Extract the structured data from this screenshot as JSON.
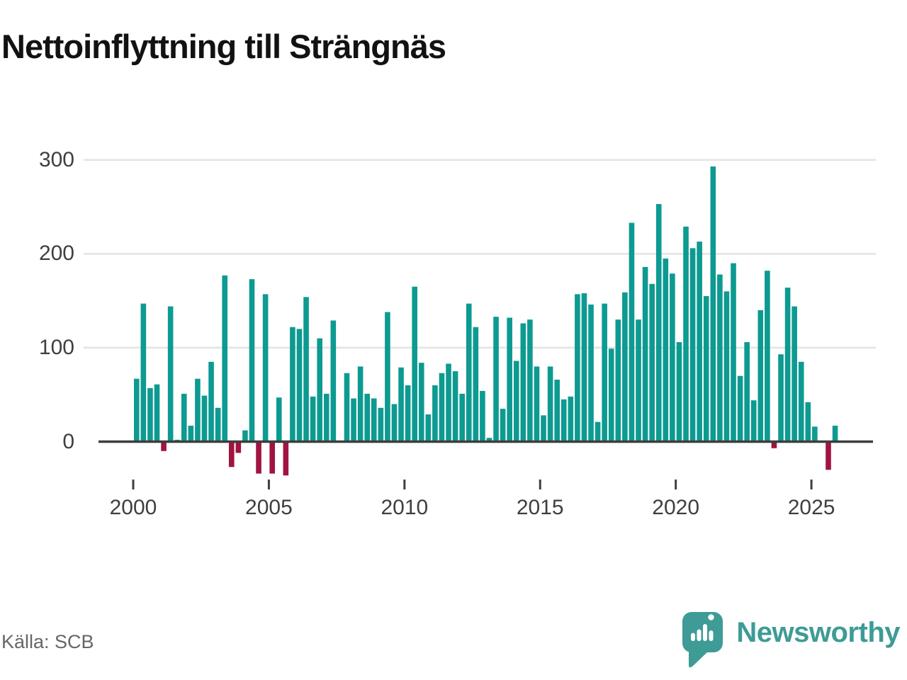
{
  "title": "Nettoinflyttning till Strängnäs",
  "source": "Källa: SCB",
  "branding": {
    "wordmark": "Newsworthy"
  },
  "colors": {
    "positive": "#0d9a91",
    "negative": "#a11340",
    "grid": "#e3e3e3",
    "axis": "#3d3d3d",
    "tick": "#3f3f3f",
    "label_text": "#3f3f3f",
    "title_text": "#121212",
    "source_text": "#666666",
    "brand": "#3e9b96"
  },
  "chart_data": {
    "type": "bar",
    "period": "quarterly",
    "start_year": 2000,
    "title": "Nettoinflyttning till Strängnäs",
    "xlabel": "",
    "ylabel": "",
    "ylim": [
      -45,
      310
    ],
    "grid": "horizontal",
    "y_ticks": [
      0,
      100,
      200,
      300
    ],
    "y_tick_labels": [
      "0",
      "100",
      "200",
      "300"
    ],
    "x_tick_years": [
      2000,
      2005,
      2010,
      2015,
      2020,
      2025
    ],
    "x_tick_labels": [
      "2000",
      "2005",
      "2010",
      "2015",
      "2020",
      "2025"
    ],
    "values": [
      67,
      147,
      57,
      61,
      -10,
      144,
      2,
      51,
      17,
      67,
      49,
      85,
      36,
      177,
      -27,
      -12,
      12,
      173,
      -34,
      157,
      -34,
      47,
      -36,
      122,
      120,
      154,
      48,
      110,
      51,
      129,
      0,
      73,
      46,
      80,
      51,
      46,
      36,
      138,
      40,
      79,
      60,
      165,
      84,
      29,
      60,
      73,
      83,
      75,
      51,
      147,
      122,
      54,
      4,
      133,
      35,
      132,
      86,
      126,
      130,
      80,
      28,
      80,
      66,
      45,
      48,
      157,
      158,
      146,
      21,
      147,
      99,
      130,
      159,
      233,
      130,
      186,
      168,
      253,
      195,
      179,
      106,
      229,
      206,
      213,
      155,
      293,
      178,
      160,
      190,
      70,
      106,
      44,
      140,
      182,
      -7,
      93,
      164,
      144,
      85,
      42,
      16,
      0,
      -30,
      17
    ]
  }
}
